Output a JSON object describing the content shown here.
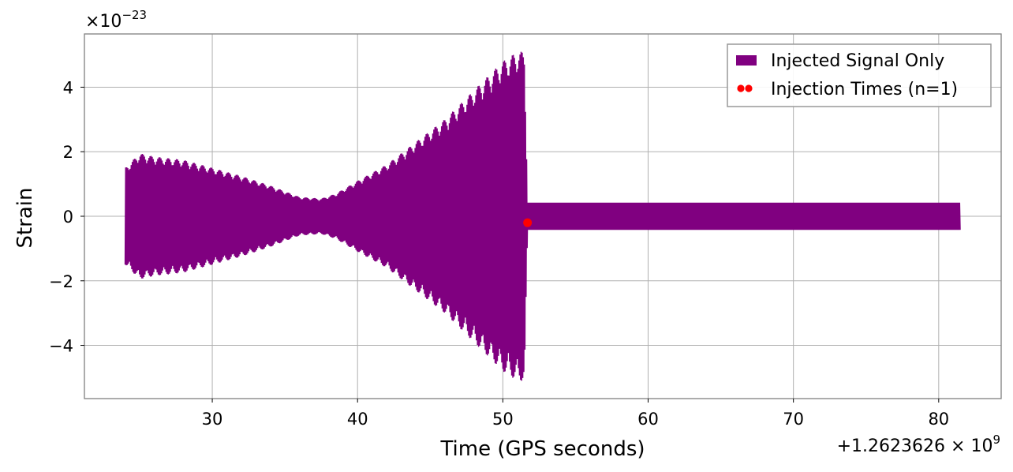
{
  "chart_data": {
    "type": "line",
    "title": "",
    "xlabel": "Time (GPS seconds)",
    "ylabel": "Strain",
    "x_offset_label": "+1.2623626 × 10",
    "x_offset_exponent": "9",
    "y_scale_label": "×10",
    "y_scale_exponent": "−23",
    "xlim": [
      21.2,
      84.3
    ],
    "ylim": [
      -5.65,
      5.65
    ],
    "x_ticks": [
      30,
      40,
      50,
      60,
      70,
      80
    ],
    "x_tick_labels": [
      "30",
      "40",
      "50",
      "60",
      "70",
      "80"
    ],
    "y_ticks": [
      -4,
      -2,
      0,
      2,
      4
    ],
    "y_tick_labels": [
      "−4",
      "−2",
      "0",
      "2",
      "4"
    ],
    "grid": true,
    "legend_position": "top-right",
    "colors": {
      "signal": "#800080",
      "injection": "#ff0000",
      "grid": "#b0b0b0",
      "frame": "#808080"
    },
    "series": [
      {
        "name": "Injected Signal Only",
        "kind": "oscillating-strain",
        "envelope": [
          [
            24.0,
            1.5
          ],
          [
            25.0,
            1.95
          ],
          [
            26.0,
            1.85
          ],
          [
            28.0,
            1.75
          ],
          [
            30.0,
            1.5
          ],
          [
            32.0,
            1.25
          ],
          [
            34.0,
            0.95
          ],
          [
            36.0,
            0.6
          ],
          [
            37.5,
            0.55
          ],
          [
            38.5,
            0.7
          ],
          [
            40.0,
            1.1
          ],
          [
            42.0,
            1.6
          ],
          [
            44.0,
            2.3
          ],
          [
            46.0,
            3.0
          ],
          [
            48.0,
            3.9
          ],
          [
            50.0,
            4.8
          ],
          [
            51.0,
            5.1
          ],
          [
            51.5,
            5.1
          ],
          [
            51.7,
            0.42
          ],
          [
            55.0,
            0.42
          ],
          [
            70.0,
            0.42
          ],
          [
            81.5,
            0.42
          ]
        ]
      },
      {
        "name": "Injection Times (n=1)",
        "kind": "marker",
        "points": [
          [
            51.7,
            -0.2
          ]
        ]
      }
    ]
  }
}
